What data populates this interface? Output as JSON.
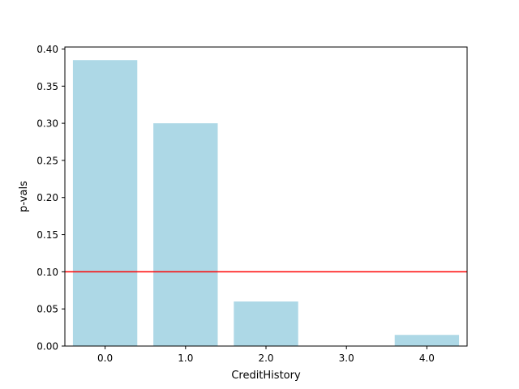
{
  "chart_data": {
    "type": "bar",
    "categories": [
      "0.0",
      "1.0",
      "2.0",
      "3.0",
      "4.0"
    ],
    "values": [
      0.385,
      0.3,
      0.06,
      0.0,
      0.015
    ],
    "xlabel": "CreditHistory",
    "ylabel": "p-vals",
    "ylim": [
      0.0,
      0.4
    ],
    "yticks": [
      "0.00",
      "0.05",
      "0.10",
      "0.15",
      "0.20",
      "0.25",
      "0.30",
      "0.35",
      "0.40"
    ],
    "reference_line": {
      "y": 0.1,
      "color": "#ff0000"
    },
    "grid": false,
    "bar_color": "#add8e6"
  }
}
